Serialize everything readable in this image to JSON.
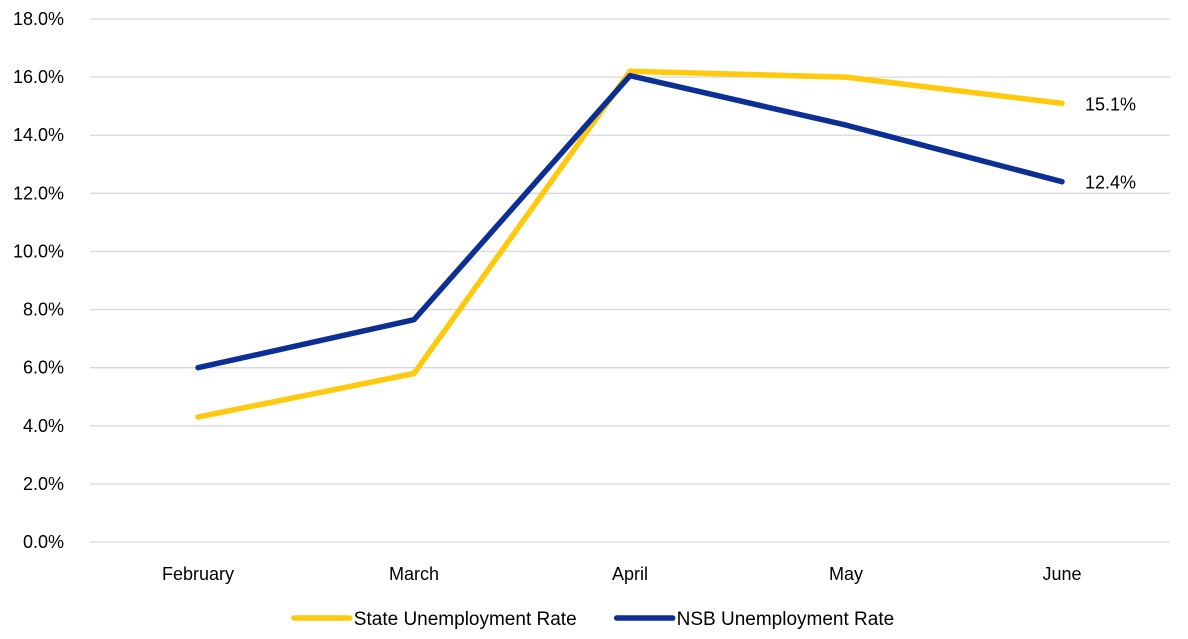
{
  "chart_data": {
    "type": "line",
    "title": "",
    "xlabel": "",
    "ylabel": "",
    "categories": [
      "February",
      "March",
      "April",
      "May",
      "June"
    ],
    "ylim": [
      0,
      18
    ],
    "yticks": [
      0,
      2,
      4,
      6,
      8,
      10,
      12,
      14,
      16,
      18
    ],
    "ytick_format": "percent_1dp",
    "grid": "horizontal",
    "legend_position": "bottom",
    "series": [
      {
        "name": "State Unemployment Rate",
        "color": "#FFC90E",
        "values": [
          4.3,
          5.8,
          16.2,
          16.0,
          15.1
        ],
        "end_label": "15.1%"
      },
      {
        "name": "NSB Unemployment Rate",
        "color": "#0B2F94",
        "values": [
          6.0,
          7.65,
          16.05,
          14.35,
          12.4
        ],
        "end_label": "12.4%"
      }
    ]
  }
}
